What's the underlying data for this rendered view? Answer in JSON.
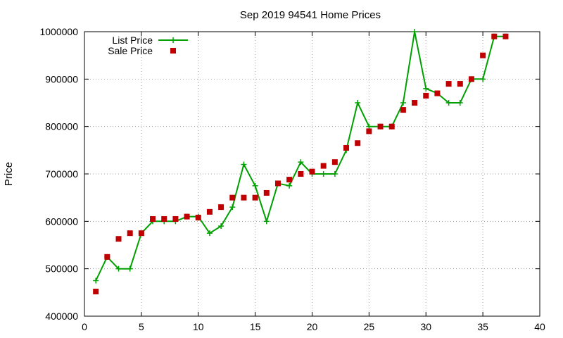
{
  "chart_data": {
    "type": "scatter",
    "title": "Sep 2019 94541 Home Prices",
    "xlabel": "",
    "ylabel": "Price",
    "xlim": [
      0,
      40
    ],
    "ylim": [
      400000,
      1000000
    ],
    "x_ticks": [
      0,
      5,
      10,
      15,
      20,
      25,
      30,
      35,
      40
    ],
    "y_ticks": [
      400000,
      500000,
      600000,
      700000,
      800000,
      900000,
      1000000
    ],
    "grid": true,
    "legend_position": "top-left",
    "series": [
      {
        "name": "List Price",
        "style": "line+cross",
        "color": "#00a000",
        "x": [
          1,
          2,
          3,
          4,
          5,
          6,
          7,
          8,
          9,
          10,
          11,
          12,
          13,
          14,
          15,
          16,
          17,
          18,
          19,
          20,
          21,
          22,
          23,
          24,
          25,
          26,
          27,
          28,
          29,
          30,
          31,
          32,
          33,
          34,
          35,
          36,
          37
        ],
        "values": [
          475000,
          525000,
          500000,
          500000,
          575000,
          600000,
          600000,
          600000,
          610000,
          610000,
          575000,
          590000,
          630000,
          720000,
          675000,
          600000,
          680000,
          675000,
          725000,
          700000,
          700000,
          700000,
          750000,
          850000,
          800000,
          800000,
          800000,
          850000,
          1000000,
          880000,
          870000,
          850000,
          850000,
          900000,
          900000,
          990000,
          990000
        ]
      },
      {
        "name": "Sale Price",
        "style": "square",
        "color": "#c00000",
        "x": [
          1,
          2,
          3,
          4,
          5,
          6,
          7,
          8,
          9,
          10,
          11,
          12,
          13,
          14,
          15,
          16,
          17,
          18,
          19,
          20,
          21,
          22,
          23,
          24,
          25,
          26,
          27,
          28,
          29,
          30,
          31,
          32,
          33,
          34,
          35,
          36,
          37
        ],
        "values": [
          452000,
          525000,
          563000,
          575000,
          575000,
          605000,
          605000,
          605000,
          610000,
          608000,
          620000,
          630000,
          650000,
          650000,
          650000,
          660000,
          680000,
          688000,
          700000,
          705000,
          717000,
          725000,
          755000,
          765000,
          790000,
          800000,
          800000,
          835000,
          850000,
          865000,
          870000,
          890000,
          890000,
          900000,
          950000,
          990000,
          990000
        ]
      }
    ]
  }
}
